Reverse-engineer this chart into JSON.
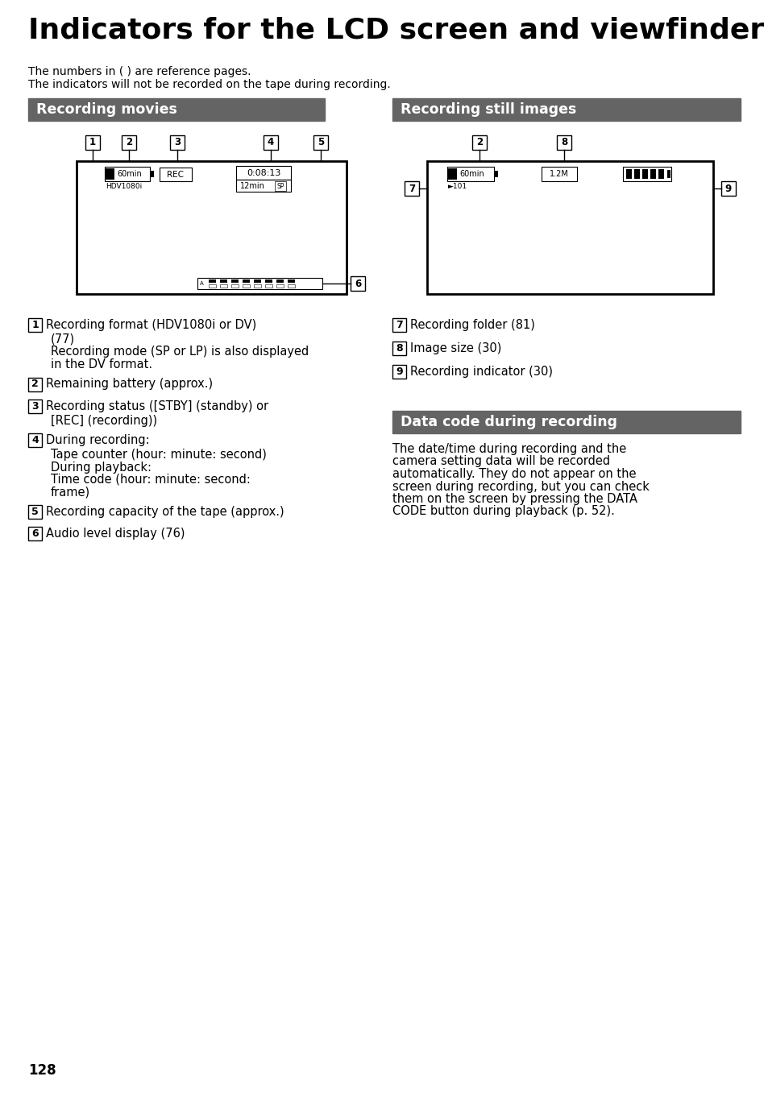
{
  "title": "Indicators for the LCD screen and viewfinder",
  "subtitle_line1": "The numbers in ( ) are reference pages.",
  "subtitle_line2": "The indicators will not be recorded on the tape during recording.",
  "section1_title": "Recording movies",
  "section2_title": "Recording still images",
  "section3_title": "Data code during recording",
  "header_bg_color": "#646464",
  "header_text_color": "#ffffff",
  "page_bg": "#ffffff",
  "page_number": "128",
  "items_left": [
    {
      "num": "1",
      "lines": [
        "Recording format (HDV1080i or DV)",
        "(77)",
        "Recording mode (SP or LP) is also displayed",
        "in the DV format."
      ]
    },
    {
      "num": "2",
      "lines": [
        "Remaining battery (approx.)"
      ]
    },
    {
      "num": "3",
      "lines": [
        "Recording status ([STBY] (standby) or",
        "[REC] (recording))"
      ]
    },
    {
      "num": "4",
      "lines": [
        "During recording:",
        "Tape counter (hour: minute: second)",
        "During playback:",
        "Time code (hour: minute: second:",
        "frame)"
      ]
    },
    {
      "num": "5",
      "lines": [
        "Recording capacity of the tape (approx.)"
      ]
    },
    {
      "num": "6",
      "lines": [
        "Audio level display (76)"
      ]
    }
  ],
  "items_right": [
    {
      "num": "7",
      "lines": [
        "Recording folder (81)"
      ]
    },
    {
      "num": "8",
      "lines": [
        "Image size (30)"
      ]
    },
    {
      "num": "9",
      "lines": [
        "Recording indicator (30)"
      ]
    }
  ],
  "data_code_lines": [
    "The date/time during recording and the",
    "camera setting data will be recorded",
    "automatically. They do not appear on the",
    "screen during recording, but you can check",
    "them on the screen by pressing the DATA",
    "CODE button during playback (p. 52)."
  ]
}
